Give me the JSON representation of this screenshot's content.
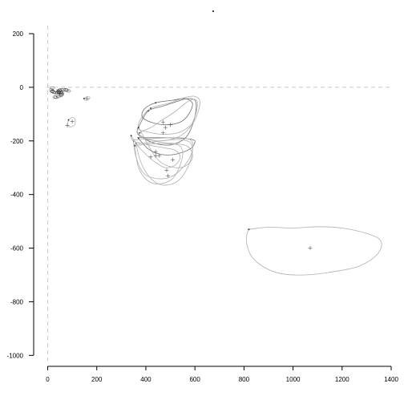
{
  "chart_data": {
    "type": "line",
    "title": "",
    "xlabel": "",
    "ylabel": "",
    "xlim": [
      -5,
      1400
    ],
    "ylim": [
      -1020,
      230
    ],
    "x_ticks": [
      0,
      200,
      400,
      600,
      800,
      1000,
      1200,
      1400
    ],
    "y_ticks": [
      200,
      0,
      -200,
      -400,
      -600,
      -800,
      -1000
    ],
    "grid": false,
    "reference_lines": [
      {
        "orientation": "vertical",
        "value": 0,
        "style": "dashed"
      },
      {
        "orientation": "horizontal",
        "value": 0,
        "style": "dashed"
      }
    ],
    "colors": {
      "outline": "#b0b0b0",
      "outline_dark": "#707070",
      "reference": "#c8c8c8",
      "axis": "#000000"
    },
    "series": [
      {
        "points": [
          [
            410,
            -88
          ],
          [
            470,
            -70
          ],
          [
            530,
            -52
          ],
          [
            570,
            -42
          ],
          [
            600,
            -48
          ],
          [
            605,
            -80
          ],
          [
            590,
            -140
          ],
          [
            560,
            -190
          ],
          [
            500,
            -215
          ],
          [
            440,
            -210
          ],
          [
            390,
            -190
          ],
          [
            365,
            -170
          ],
          [
            375,
            -140
          ]
        ]
      },
      {
        "points": [
          [
            420,
            -78
          ],
          [
            490,
            -60
          ],
          [
            560,
            -38
          ],
          [
            600,
            -34
          ],
          [
            620,
            -52
          ],
          [
            610,
            -100
          ],
          [
            585,
            -140
          ],
          [
            530,
            -170
          ],
          [
            460,
            -175
          ],
          [
            400,
            -165
          ],
          [
            370,
            -155
          ],
          [
            378,
            -120
          ]
        ]
      },
      {
        "points": [
          [
            440,
            -58
          ],
          [
            510,
            -48
          ],
          [
            560,
            -42
          ],
          [
            590,
            -60
          ],
          [
            575,
            -100
          ],
          [
            540,
            -130
          ],
          [
            480,
            -140
          ],
          [
            420,
            -130
          ],
          [
            385,
            -110
          ],
          [
            395,
            -80
          ]
        ]
      },
      {
        "points": [
          [
            370,
            -150
          ],
          [
            400,
            -200
          ],
          [
            440,
            -260
          ],
          [
            480,
            -290
          ],
          [
            540,
            -300
          ],
          [
            580,
            -280
          ],
          [
            590,
            -250
          ],
          [
            570,
            -220
          ],
          [
            520,
            -210
          ],
          [
            460,
            -205
          ],
          [
            400,
            -190
          ],
          [
            368,
            -172
          ]
        ]
      },
      {
        "points": [
          [
            370,
            -190
          ],
          [
            410,
            -230
          ],
          [
            460,
            -250
          ],
          [
            520,
            -250
          ],
          [
            580,
            -230
          ],
          [
            600,
            -205
          ],
          [
            590,
            -195
          ],
          [
            540,
            -190
          ],
          [
            480,
            -188
          ],
          [
            410,
            -188
          ],
          [
            372,
            -188
          ]
        ]
      },
      {
        "points": [
          [
            360,
            -210
          ],
          [
            380,
            -280
          ],
          [
            420,
            -340
          ],
          [
            470,
            -365
          ],
          [
            530,
            -350
          ],
          [
            570,
            -300
          ],
          [
            590,
            -240
          ],
          [
            580,
            -205
          ],
          [
            530,
            -195
          ],
          [
            460,
            -200
          ],
          [
            395,
            -208
          ],
          [
            362,
            -210
          ]
        ]
      },
      {
        "points": [
          [
            350,
            -200
          ],
          [
            360,
            -260
          ],
          [
            390,
            -320
          ],
          [
            440,
            -340
          ],
          [
            500,
            -335
          ],
          [
            550,
            -300
          ],
          [
            585,
            -250
          ],
          [
            590,
            -205
          ],
          [
            560,
            -190
          ],
          [
            500,
            -188
          ],
          [
            420,
            -192
          ],
          [
            360,
            -196
          ]
        ]
      },
      {
        "points": [
          [
            355,
            -218
          ],
          [
            370,
            -300
          ],
          [
            410,
            -350
          ],
          [
            460,
            -360
          ],
          [
            510,
            -340
          ],
          [
            540,
            -290
          ],
          [
            550,
            -240
          ],
          [
            530,
            -215
          ],
          [
            470,
            -210
          ],
          [
            400,
            -212
          ],
          [
            358,
            -218
          ]
        ]
      },
      {
        "points": [
          [
            375,
            -170
          ],
          [
            420,
            -150
          ],
          [
            470,
            -120
          ],
          [
            520,
            -90
          ],
          [
            560,
            -60
          ],
          [
            590,
            -45
          ],
          [
            610,
            -55
          ],
          [
            600,
            -110
          ],
          [
            570,
            -160
          ],
          [
            520,
            -190
          ],
          [
            450,
            -200
          ],
          [
            390,
            -190
          ]
        ]
      },
      {
        "points": [
          [
            340,
            -180
          ],
          [
            360,
            -210
          ],
          [
            400,
            -250
          ],
          [
            440,
            -280
          ],
          [
            480,
            -300
          ],
          [
            520,
            -290
          ],
          [
            540,
            -260
          ],
          [
            520,
            -235
          ],
          [
            470,
            -225
          ],
          [
            410,
            -215
          ],
          [
            350,
            -200
          ]
        ]
      },
      {
        "points": [
          [
            820,
            -530
          ],
          [
            900,
            -522
          ],
          [
            1000,
            -525
          ],
          [
            1100,
            -520
          ],
          [
            1200,
            -525
          ],
          [
            1300,
            -545
          ],
          [
            1350,
            -565
          ],
          [
            1360,
            -595
          ],
          [
            1330,
            -635
          ],
          [
            1260,
            -670
          ],
          [
            1150,
            -690
          ],
          [
            1050,
            -700
          ],
          [
            950,
            -695
          ],
          [
            880,
            -670
          ],
          [
            830,
            -630
          ],
          [
            812,
            -585
          ],
          [
            812,
            -548
          ],
          [
            820,
            -530
          ]
        ]
      },
      {
        "points": [
          [
            85,
            -122
          ],
          [
            100,
            -112
          ],
          [
            112,
            -120
          ],
          [
            110,
            -140
          ],
          [
            92,
            -148
          ],
          [
            80,
            -140
          ],
          [
            85,
            -122
          ]
        ]
      },
      {
        "points": [
          [
            148,
            -42
          ],
          [
            160,
            -35
          ],
          [
            172,
            -38
          ],
          [
            166,
            -46
          ],
          [
            152,
            -48
          ],
          [
            148,
            -42
          ]
        ]
      }
    ],
    "centroids": [
      [
        470,
        -170
      ],
      [
        480,
        -150
      ],
      [
        500,
        -140
      ],
      [
        455,
        -255
      ],
      [
        440,
        -255
      ],
      [
        510,
        -270
      ],
      [
        490,
        -330
      ],
      [
        485,
        -310
      ],
      [
        470,
        -130
      ],
      [
        440,
        -240
      ],
      [
        420,
        -260
      ],
      [
        1070,
        -600
      ],
      [
        100,
        -128
      ],
      [
        160,
        -42
      ],
      [
        80,
        -142
      ],
      [
        60,
        -18
      ]
    ],
    "cluster": {
      "center": [
        45,
        -18
      ],
      "count": 28
    }
  }
}
